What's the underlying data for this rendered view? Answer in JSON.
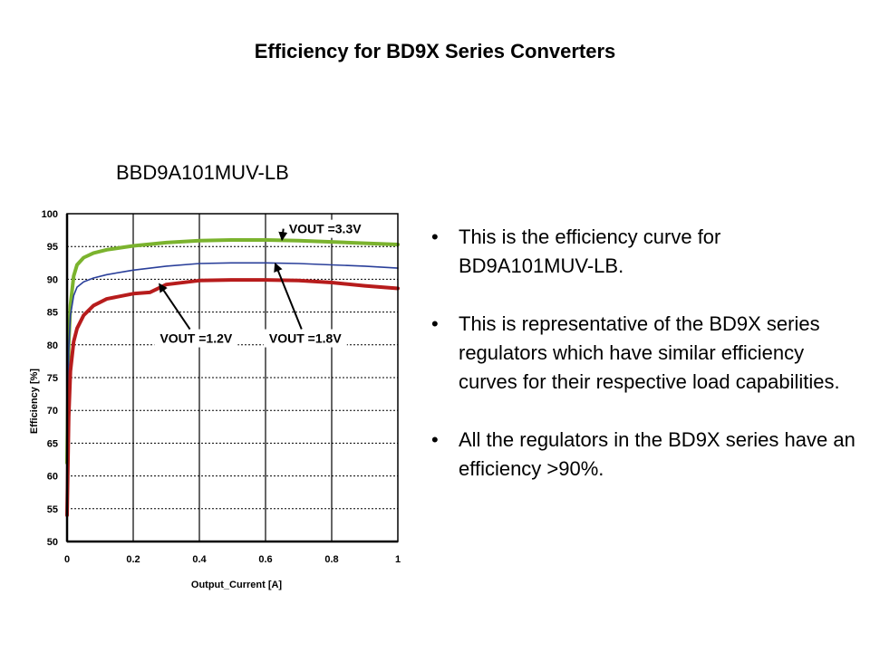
{
  "slide": {
    "title": "Efficiency for BD9X Series Converters",
    "chart_caption": "BBD9A101MUV-LB",
    "bullets": [
      "This is the efficiency curve for BD9A101MUV-LB.",
      "This is representative of the BD9X series regulators which have similar efficiency curves for their respective load capabilities.",
      "All the regulators in the BD9X series have an efficiency >90%."
    ],
    "bullet_glyph": "•"
  },
  "chart_data": {
    "type": "line",
    "title": "",
    "xlabel": "Output_Current [A]",
    "ylabel": "Efficiency [%]",
    "xlim": [
      0,
      1
    ],
    "ylim": [
      50,
      100
    ],
    "xticks": [
      "0",
      "0.2",
      "0.4",
      "0.6",
      "0.8",
      "1"
    ],
    "yticks": [
      "50",
      "55",
      "60",
      "65",
      "70",
      "75",
      "80",
      "85",
      "90",
      "95",
      "100"
    ],
    "grid": true,
    "series": [
      {
        "name": "VOUT =3.3V",
        "color": "#7bb32e",
        "x": [
          0.0,
          0.005,
          0.01,
          0.02,
          0.03,
          0.05,
          0.08,
          0.12,
          0.2,
          0.3,
          0.4,
          0.5,
          0.6,
          0.7,
          0.8,
          0.9,
          1.0
        ],
        "y": [
          62,
          80,
          86,
          90.5,
          92.2,
          93.3,
          94.0,
          94.5,
          95.1,
          95.6,
          95.9,
          96.0,
          96.0,
          95.9,
          95.7,
          95.5,
          95.3
        ]
      },
      {
        "name": "VOUT =1.8V",
        "color": "#2a3f9a",
        "x": [
          0.0,
          0.005,
          0.01,
          0.02,
          0.03,
          0.05,
          0.08,
          0.12,
          0.2,
          0.3,
          0.4,
          0.5,
          0.6,
          0.7,
          0.8,
          0.9,
          1.0
        ],
        "y": [
          61,
          79,
          84.5,
          87.5,
          88.8,
          89.6,
          90.2,
          90.7,
          91.4,
          92.0,
          92.4,
          92.5,
          92.5,
          92.4,
          92.2,
          92.0,
          91.7
        ]
      },
      {
        "name": "VOUT =1.2V",
        "color": "#b71c1c",
        "x": [
          0.0,
          0.005,
          0.01,
          0.02,
          0.03,
          0.05,
          0.08,
          0.12,
          0.2,
          0.25,
          0.3,
          0.4,
          0.5,
          0.6,
          0.7,
          0.8,
          0.9,
          1.0
        ],
        "y": [
          54,
          69,
          76,
          80.5,
          82.5,
          84.5,
          86.0,
          87.0,
          87.8,
          88.0,
          89.2,
          89.8,
          89.9,
          89.9,
          89.8,
          89.5,
          89.0,
          88.6
        ]
      }
    ],
    "annotations": [
      {
        "label": "VOUT =3.3V",
        "from": [
          0.78,
          97.7
        ],
        "to": [
          0.65,
          96.1
        ]
      },
      {
        "label": "VOUT =1.2V",
        "from": [
          0.39,
          81.0
        ],
        "to": [
          0.28,
          89.2
        ]
      },
      {
        "label": "VOUT =1.8V",
        "from": [
          0.72,
          81.0
        ],
        "to": [
          0.63,
          92.3
        ]
      }
    ]
  }
}
